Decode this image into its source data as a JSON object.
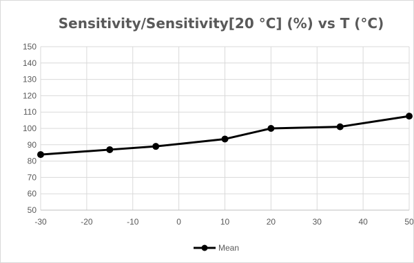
{
  "chart_data": {
    "type": "line",
    "title": "Sensitivity/Sensitivity[20 °C] (%) vs T (°C)",
    "xlabel": "",
    "ylabel": "",
    "xlim": [
      -30,
      50
    ],
    "ylim": [
      50,
      150
    ],
    "x_ticks": [
      -30,
      -20,
      -10,
      0,
      10,
      20,
      30,
      40,
      50
    ],
    "y_ticks": [
      50,
      60,
      70,
      80,
      90,
      100,
      110,
      120,
      130,
      140,
      150
    ],
    "grid": true,
    "legend_position": "bottom",
    "series": [
      {
        "name": "Mean",
        "color": "#000000",
        "marker": "circle",
        "x": [
          -30,
          -15,
          -5,
          10,
          20,
          35,
          50
        ],
        "y": [
          84,
          87,
          89,
          93.5,
          100,
          101,
          107.5
        ]
      }
    ]
  }
}
